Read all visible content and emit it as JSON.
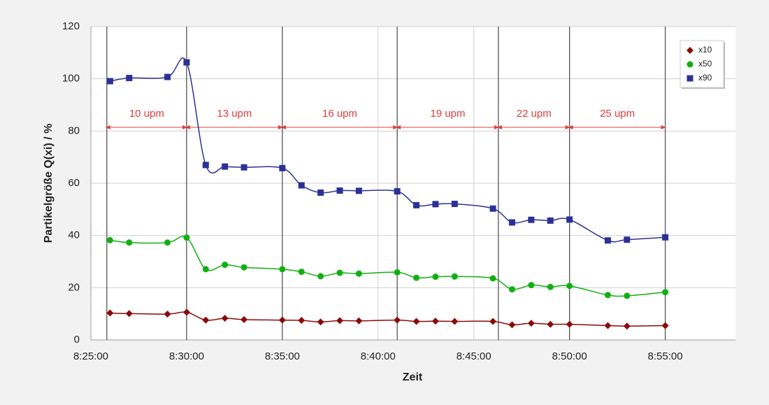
{
  "chart_data": {
    "type": "line",
    "x_label": "Zeit",
    "y_label": "Partikelgröße Q(xi) / %",
    "x": [
      "8:26:00",
      "8:27:00",
      "8:29:00",
      "8:30:00",
      "8:31:00",
      "8:32:00",
      "8:33:00",
      "8:35:00",
      "8:36:00",
      "8:37:00",
      "8:38:00",
      "8:39:00",
      "8:41:00",
      "8:42:00",
      "8:43:00",
      "8:44:00",
      "8:46:00",
      "8:47:00",
      "8:48:00",
      "8:49:00",
      "8:50:00",
      "8:52:00",
      "8:53:00",
      "8:55:00"
    ],
    "series": [
      {
        "name": "x10",
        "color": "#8b0a0a",
        "marker": "diamond",
        "values": [
          10.3,
          10.1,
          9.9,
          10.6,
          7.6,
          8.3,
          7.8,
          7.6,
          7.5,
          6.9,
          7.4,
          7.3,
          7.6,
          7.1,
          7.2,
          7.1,
          7.1,
          5.8,
          6.4,
          6.0,
          6.0,
          5.5,
          5.3,
          5.5
        ]
      },
      {
        "name": "x50",
        "color": "#10b010",
        "marker": "circle",
        "values": [
          38.2,
          37.3,
          37.3,
          39.2,
          27.1,
          28.8,
          27.8,
          27.1,
          26.1,
          24.4,
          25.7,
          25.4,
          25.9,
          23.8,
          24.2,
          24.3,
          23.6,
          19.4,
          21.0,
          20.3,
          20.7,
          17.2,
          16.9,
          18.3
        ]
      },
      {
        "name": "x90",
        "color": "#2b3196",
        "marker": "square",
        "values": [
          99.1,
          100.3,
          100.7,
          106.3,
          67.0,
          66.4,
          66.1,
          65.8,
          59.2,
          56.4,
          57.2,
          57.1,
          56.9,
          51.6,
          52.0,
          52.1,
          50.3,
          45.0,
          46.0,
          45.7,
          46.1,
          38.1,
          38.4,
          39.3
        ]
      }
    ],
    "xlim": [
      "8:25:00",
      "8:58:40"
    ],
    "xticks": [
      "8:25:00",
      "8:30:00",
      "8:35:00",
      "8:40:00",
      "8:45:00",
      "8:50:00",
      "8:55:00"
    ],
    "ylim": [
      0,
      120
    ],
    "yticks": [
      0,
      20,
      40,
      60,
      80,
      100,
      120
    ],
    "grid": true,
    "legend": "top-right",
    "annotation_color": "#e03c3c",
    "regions": [
      {
        "label": "10 upm",
        "start": "8:25:50",
        "end": "8:30:00"
      },
      {
        "label": "13 upm",
        "start": "8:30:00",
        "end": "8:35:00"
      },
      {
        "label": "16 upm",
        "start": "8:35:00",
        "end": "8:41:00"
      },
      {
        "label": "19 upm",
        "start": "8:41:00",
        "end": "8:46:17"
      },
      {
        "label": "22 upm",
        "start": "8:46:17",
        "end": "8:50:00"
      },
      {
        "label": "25 upm",
        "start": "8:50:00",
        "end": "8:55:00"
      }
    ]
  }
}
